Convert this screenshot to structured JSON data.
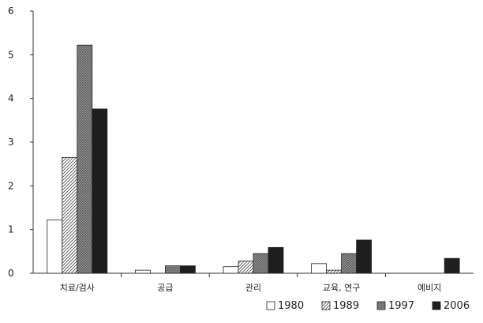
{
  "chart_data": {
    "type": "bar",
    "title": "",
    "xlabel": "",
    "ylabel": "",
    "categories": [
      "치료/검사",
      "공급",
      "관리",
      "교육, 연구",
      "예비지"
    ],
    "series": [
      {
        "name": "1980",
        "values": [
          1.22,
          0.07,
          0.15,
          0.22,
          0.0
        ]
      },
      {
        "name": "1989",
        "values": [
          2.65,
          0.0,
          0.28,
          0.07,
          0.0
        ]
      },
      {
        "name": "1997",
        "values": [
          5.22,
          0.17,
          0.45,
          0.45,
          0.0
        ]
      },
      {
        "name": "2006",
        "values": [
          3.76,
          0.17,
          0.59,
          0.76,
          0.34
        ]
      }
    ],
    "ylim": [
      0,
      6
    ],
    "yticks": [
      0,
      1,
      2,
      3,
      4,
      5,
      6
    ],
    "grid": false,
    "legend_position": "bottom-right",
    "series_fills": [
      "white",
      "light-hatched",
      "dense-hatched",
      "dark-solid"
    ]
  }
}
